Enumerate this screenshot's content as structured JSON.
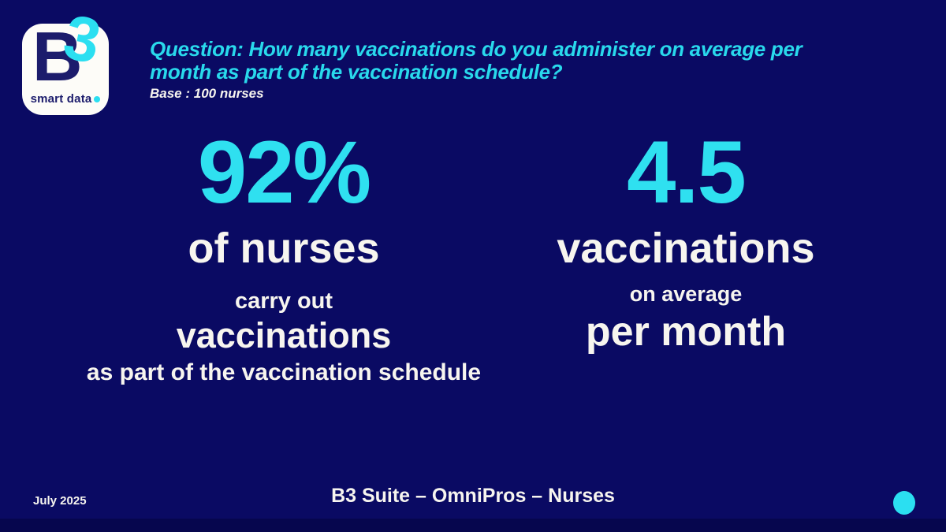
{
  "slide": {
    "background_color": "#0a0a63",
    "accent_cyan": "#2bdff1",
    "text_color": "#f7f5ef",
    "footer_strip_color": "#06064e"
  },
  "logo": {
    "letter_b": "B",
    "digit_3": "3",
    "tagline": "smart data"
  },
  "question": {
    "line1": "Question: How many vaccinations do you administer on average per",
    "line2": "month as part of the vaccination schedule?",
    "base": "Base : 100 nurses"
  },
  "stat_left": {
    "value": "92%",
    "line1": "of nurses",
    "line2": "carry out",
    "line3": "vaccinations",
    "line4": "as part of the vaccination schedule"
  },
  "stat_right": {
    "value": "4.5",
    "line1": "vaccinations",
    "line2": "on average",
    "line3": "per month"
  },
  "footer": {
    "date": "July 2025",
    "title": "B3 Suite – OmniPros – Nurses"
  },
  "chart_data": {
    "type": "table",
    "title": "Question: How many vaccinations do you administer on average per month as part of the vaccination schedule?",
    "base": "Base : 100 nurses",
    "stats": [
      {
        "value": 92,
        "unit": "%",
        "label": "of nurses carry out vaccinations as part of the vaccination schedule"
      },
      {
        "value": 4.5,
        "unit": "vaccinations",
        "label": "vaccinations on average per month"
      }
    ]
  }
}
